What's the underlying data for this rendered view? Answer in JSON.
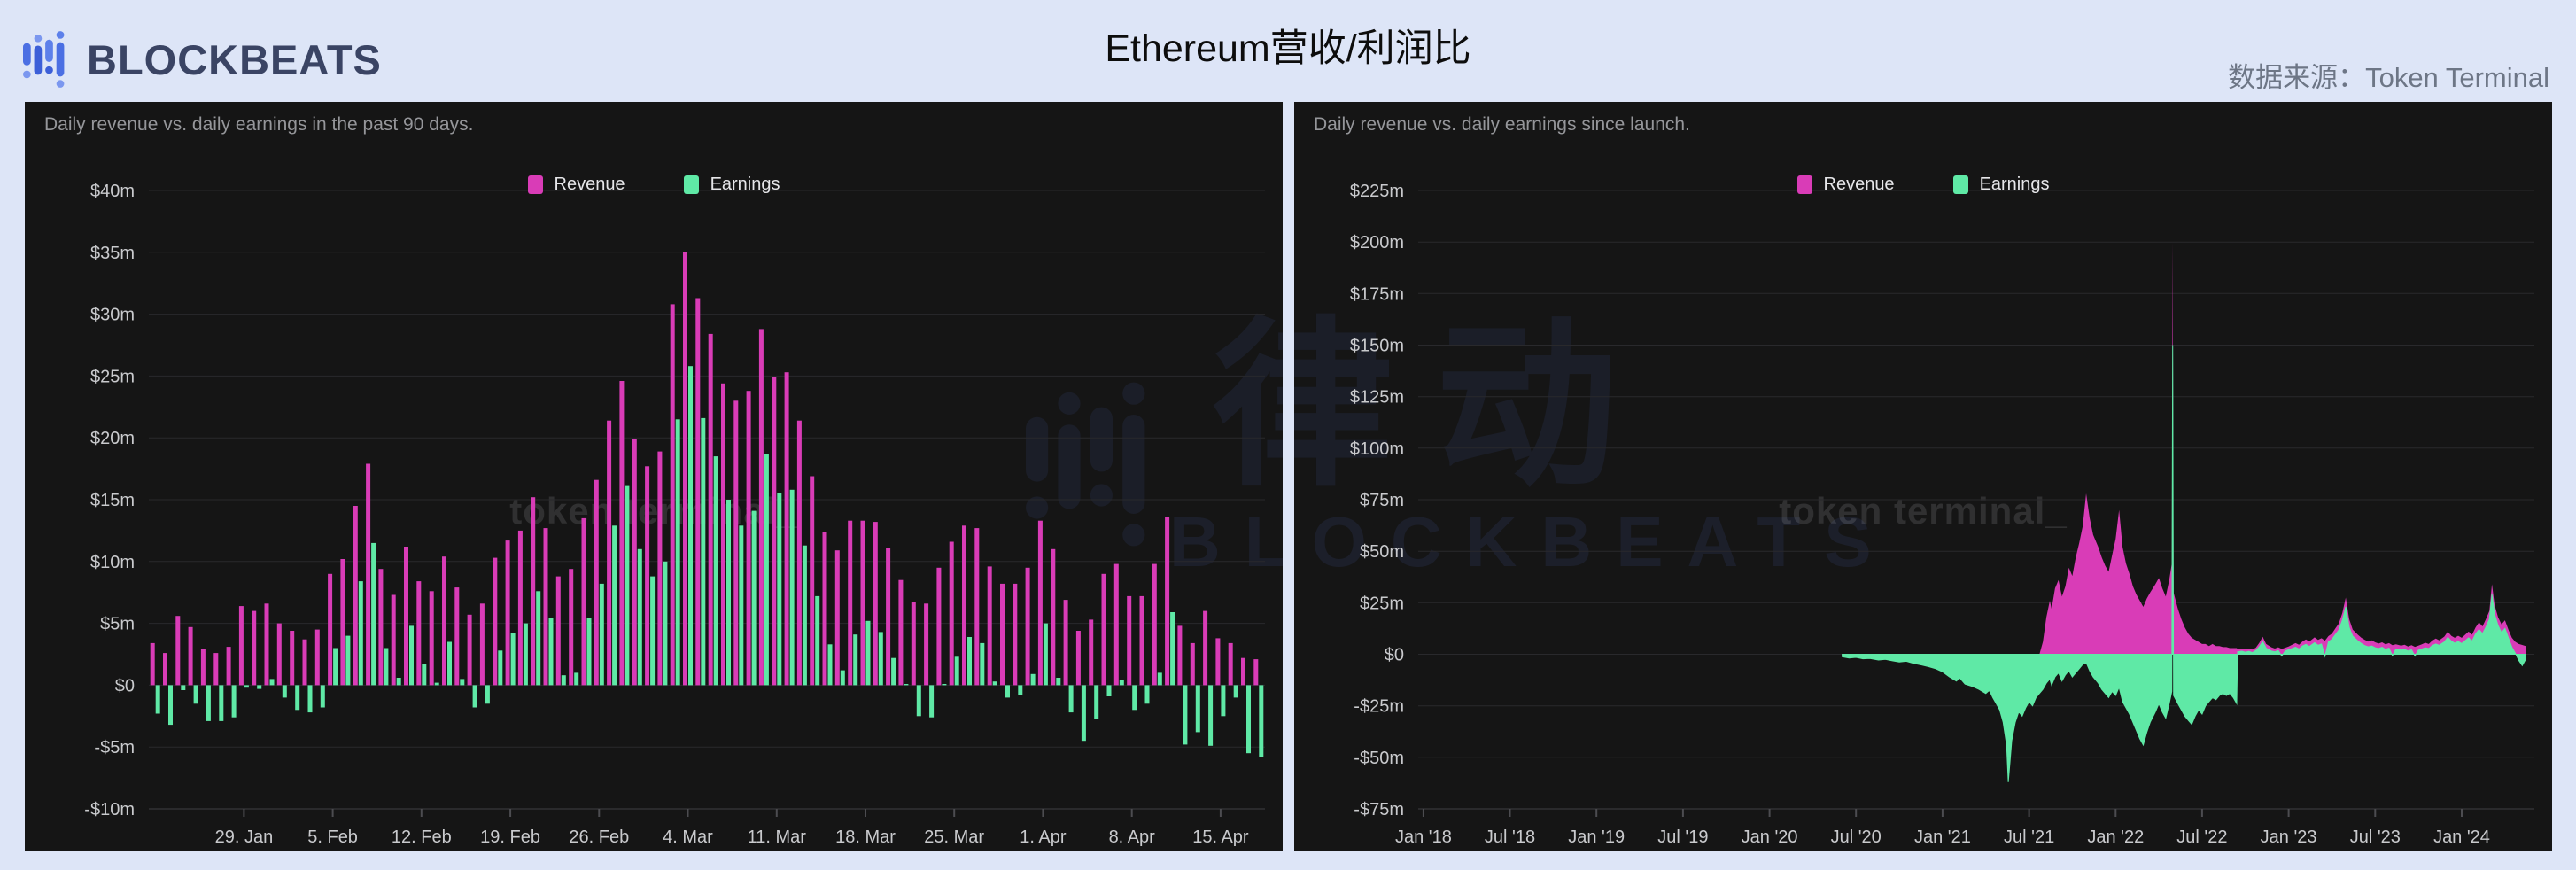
{
  "header": {
    "logo_text": "BLOCKBEATS",
    "title": "Ethereum营收/利润比",
    "source_label": "数据来源：Token Terminal"
  },
  "watermarks": {
    "token_terminal": "token terminal_",
    "blockbeats_cn": "律动",
    "blockbeats_en": "BLOCKBEATS"
  },
  "colors": {
    "revenue": "#d93cb7",
    "earnings": "#5fe9a6",
    "header_background": "#dde5f7",
    "panel_background": "#151515",
    "logo_blue": "#4b6fe3",
    "logo_text": "#3a4464",
    "grid_line": "#29292c",
    "axis_line": "#3e3e42",
    "axis_label": "#c9cacd",
    "subtitle_text": "#95969a",
    "source_text": "#6d7686"
  },
  "chart_data": [
    {
      "type": "bar",
      "subtitle": "Daily revenue vs. daily earnings in the past 90 days.",
      "unit": "$m",
      "ylim": [
        -10,
        40
      ],
      "y_tick_labels": [
        "$40m",
        "$35m",
        "$30m",
        "$25m",
        "$20m",
        "$15m",
        "$10m",
        "$5m",
        "$0",
        "-$5m",
        "-$10m"
      ],
      "y_tick_values": [
        40,
        35,
        30,
        25,
        20,
        15,
        10,
        5,
        0,
        -5,
        -10
      ],
      "x_tick_labels": [
        "29. Jan",
        "5. Feb",
        "12. Feb",
        "19. Feb",
        "26. Feb",
        "4. Mar",
        "11. Mar",
        "18. Mar",
        "25. Mar",
        "1. Apr",
        "8. Apr",
        "15. Apr"
      ],
      "x_tick_indices": [
        7,
        14,
        21,
        28,
        35,
        42,
        49,
        56,
        63,
        70,
        77,
        84
      ],
      "legend_position": "top-center",
      "grid": true,
      "series": [
        {
          "name": "Revenue",
          "color": "#d93cb7",
          "values": [
            3.4,
            2.6,
            5.6,
            4.7,
            2.9,
            2.6,
            3.1,
            6.4,
            6.0,
            6.6,
            5.0,
            4.4,
            3.7,
            4.5,
            9.0,
            10.2,
            14.5,
            17.9,
            9.4,
            7.3,
            11.2,
            8.4,
            7.6,
            10.4,
            7.9,
            5.7,
            6.6,
            10.3,
            11.7,
            12.5,
            15.2,
            12.7,
            8.8,
            9.4,
            13.5,
            16.6,
            21.4,
            24.6,
            19.9,
            17.7,
            18.9,
            30.8,
            35.0,
            31.3,
            28.4,
            24.4,
            23.0,
            23.8,
            28.8,
            24.9,
            25.3,
            21.4,
            16.9,
            12.4,
            10.9,
            13.3,
            13.3,
            13.2,
            11.1,
            8.5,
            6.7,
            6.6,
            9.5,
            11.6,
            12.9,
            12.7,
            9.6,
            8.2,
            8.2,
            9.5,
            13.3,
            11.0,
            6.9,
            4.4,
            5.3,
            9.0,
            9.8,
            7.2,
            7.2,
            9.8,
            13.6,
            4.8,
            3.4,
            6.0,
            3.8,
            3.4,
            2.2,
            2.1
          ]
        },
        {
          "name": "Earnings",
          "color": "#5fe9a6",
          "values": [
            -2.3,
            -3.2,
            -0.4,
            -1.5,
            -2.9,
            -2.9,
            -2.6,
            -0.2,
            -0.3,
            0.5,
            -1.0,
            -2.0,
            -2.2,
            -1.8,
            3.0,
            4.0,
            8.4,
            11.5,
            3.0,
            0.6,
            4.8,
            1.7,
            0.2,
            3.5,
            0.5,
            -1.8,
            -1.5,
            2.8,
            4.2,
            5.0,
            7.6,
            5.4,
            0.8,
            1.0,
            5.4,
            8.2,
            12.9,
            16.1,
            11.0,
            8.8,
            10.0,
            21.5,
            25.8,
            21.6,
            18.5,
            15.0,
            12.9,
            14.1,
            18.7,
            15.5,
            15.8,
            11.3,
            7.2,
            3.3,
            1.2,
            4.1,
            5.2,
            4.3,
            2.2,
            0.1,
            -2.5,
            -2.6,
            0.1,
            2.3,
            3.9,
            3.4,
            0.3,
            -1.0,
            -0.8,
            0.9,
            5.0,
            0.6,
            -2.2,
            -4.5,
            -2.7,
            -0.9,
            0.4,
            -2.0,
            -1.5,
            1.0,
            5.9,
            -4.8,
            -3.8,
            -4.9,
            -2.5,
            -1.0,
            -5.5,
            -5.8
          ]
        }
      ]
    },
    {
      "type": "area",
      "subtitle": "Daily revenue vs. daily earnings since launch.",
      "unit": "$m",
      "ylim": [
        -75,
        225
      ],
      "xlim": [
        2017.97,
        2024.42
      ],
      "y_tick_labels": [
        "$225m",
        "$200m",
        "$175m",
        "$150m",
        "$125m",
        "$100m",
        "$75m",
        "$50m",
        "$25m",
        "$0",
        "-$25m",
        "-$50m",
        "-$75m"
      ],
      "y_tick_values": [
        225,
        200,
        175,
        150,
        125,
        100,
        75,
        50,
        25,
        0,
        -25,
        -50,
        -75
      ],
      "x_tick_labels": [
        "Jan '18",
        "Jul '18",
        "Jan '19",
        "Jul '19",
        "Jan '20",
        "Jul '20",
        "Jan '21",
        "Jul '21",
        "Jan '22",
        "Jul '22",
        "Jan '23",
        "Jul '23",
        "Jan '24"
      ],
      "x_tick_values": [
        2018.0,
        2018.5,
        2019.0,
        2019.5,
        2020.0,
        2020.5,
        2021.0,
        2021.5,
        2022.0,
        2022.5,
        2023.0,
        2023.5,
        2024.0
      ],
      "legend_position": "top-center",
      "grid": true,
      "x": [
        2020.42,
        2020.46,
        2020.5,
        2020.54,
        2020.58,
        2020.63,
        2020.67,
        2020.71,
        2020.75,
        2020.79,
        2020.83,
        2020.88,
        2020.92,
        2020.96,
        2021.0,
        2021.04,
        2021.08,
        2021.1,
        2021.13,
        2021.17,
        2021.21,
        2021.25,
        2021.27,
        2021.29,
        2021.31,
        2021.33,
        2021.35,
        2021.37,
        2021.38,
        2021.39,
        2021.4,
        2021.42,
        2021.44,
        2021.46,
        2021.48,
        2021.5,
        2021.52,
        2021.54,
        2021.56,
        2021.58,
        2021.6,
        2021.62,
        2021.63,
        2021.65,
        2021.67,
        2021.69,
        2021.71,
        2021.73,
        2021.75,
        2021.77,
        2021.79,
        2021.81,
        2021.83,
        2021.85,
        2021.87,
        2021.9,
        2021.92,
        2021.94,
        2021.96,
        2021.98,
        2022.0,
        2022.02,
        2022.04,
        2022.06,
        2022.08,
        2022.1,
        2022.12,
        2022.14,
        2022.16,
        2022.18,
        2022.2,
        2022.23,
        2022.25,
        2022.27,
        2022.29,
        2022.31,
        2022.325,
        2022.33,
        2022.335,
        2022.36,
        2022.38,
        2022.4,
        2022.42,
        2022.44,
        2022.46,
        2022.48,
        2022.5,
        2022.52,
        2022.54,
        2022.56,
        2022.58,
        2022.6,
        2022.62,
        2022.64,
        2022.66,
        2022.68,
        2022.7,
        2022.705,
        2022.73,
        2022.75,
        2022.77,
        2022.79,
        2022.81,
        2022.83,
        2022.85,
        2022.87,
        2022.9,
        2022.92,
        2022.94,
        2022.96,
        2022.98,
        2023.0,
        2023.02,
        2023.04,
        2023.06,
        2023.08,
        2023.1,
        2023.12,
        2023.15,
        2023.17,
        2023.19,
        2023.21,
        2023.23,
        2023.25,
        2023.27,
        2023.29,
        2023.31,
        2023.33,
        2023.35,
        2023.37,
        2023.4,
        2023.42,
        2023.44,
        2023.46,
        2023.48,
        2023.5,
        2023.52,
        2023.54,
        2023.56,
        2023.58,
        2023.6,
        2023.62,
        2023.65,
        2023.67,
        2023.69,
        2023.71,
        2023.73,
        2023.75,
        2023.77,
        2023.79,
        2023.81,
        2023.83,
        2023.85,
        2023.87,
        2023.9,
        2023.92,
        2023.94,
        2023.96,
        2023.98,
        2024.0,
        2024.02,
        2024.04,
        2024.06,
        2024.08,
        2024.1,
        2024.12,
        2024.14,
        2024.16,
        2024.175,
        2024.19,
        2024.21,
        2024.23,
        2024.25,
        2024.27,
        2024.29,
        2024.31,
        2024.33,
        2024.35,
        2024.37
      ],
      "series": [
        {
          "name": "Revenue",
          "color": "#d93cb7",
          "values": [
            0,
            0,
            0,
            0,
            0,
            0,
            0,
            0,
            0,
            0,
            0,
            0,
            0,
            0,
            0,
            0,
            0,
            0,
            0,
            0,
            0,
            0,
            0,
            0,
            0,
            0,
            0,
            0,
            0,
            0,
            0,
            0,
            0,
            0,
            0,
            0,
            0,
            0,
            0,
            6,
            18,
            26,
            22,
            32,
            36,
            28,
            33,
            42,
            38,
            47,
            54,
            62,
            78,
            66,
            58,
            52,
            47,
            43,
            40,
            48,
            56,
            70,
            52,
            44,
            39,
            33,
            29,
            26,
            23,
            27,
            30,
            34,
            37,
            32,
            28,
            36,
            44,
            200,
            30,
            22,
            17,
            13,
            10,
            8,
            7,
            6,
            5,
            5,
            4,
            5,
            4,
            4,
            3.5,
            3.5,
            3,
            3,
            3,
            2.5,
            2.8,
            2.4,
            2.8,
            2.3,
            3.2,
            5.5,
            8.5,
            5.0,
            3.4,
            2.8,
            3.4,
            2.6,
            3.2,
            3.8,
            4.6,
            5.4,
            4.6,
            6.2,
            7.2,
            6.2,
            8.2,
            7.0,
            7.8,
            6.6,
            8.8,
            10.0,
            12.5,
            15.0,
            20.0,
            27.5,
            17.0,
            12.0,
            9.5,
            8.0,
            7.0,
            6.2,
            6.8,
            5.8,
            5.2,
            5.8,
            4.8,
            5.4,
            4.4,
            4.8,
            4.2,
            4.6,
            3.8,
            4.4,
            3.6,
            4.2,
            4.8,
            5.6,
            5.0,
            6.6,
            7.6,
            6.8,
            8.6,
            11.0,
            9.0,
            8.0,
            9.0,
            8.0,
            9.5,
            11.0,
            9.5,
            13.0,
            15.5,
            13.5,
            17.0,
            21.0,
            34.0,
            24.0,
            18.0,
            14.5,
            16.5,
            12.0,
            8.0,
            6.0,
            5.0,
            4.5,
            4.0
          ]
        },
        {
          "name": "Earnings",
          "color": "#5fe9a6",
          "values": [
            -1.2,
            -1.8,
            -1.5,
            -2.2,
            -2.0,
            -2.8,
            -2.5,
            -3.2,
            -3.8,
            -3.4,
            -4.4,
            -5.2,
            -6.0,
            -7.0,
            -8.5,
            -11,
            -13,
            -11.5,
            -14.5,
            -15.5,
            -17,
            -19,
            -17.5,
            -21,
            -24,
            -27,
            -33,
            -44,
            -62,
            -52,
            -42,
            -33,
            -28,
            -30,
            -26,
            -23,
            -25,
            -21,
            -19,
            -17,
            -14,
            -12,
            -15,
            -11,
            -9,
            -13,
            -10,
            -8,
            -11,
            -9,
            -7,
            -5,
            -4,
            -8,
            -11,
            -14,
            -17,
            -19,
            -21,
            -18,
            -20,
            -16,
            -23,
            -26,
            -29,
            -33,
            -37,
            -41,
            -44,
            -38,
            -33,
            -28,
            -24,
            -28,
            -31,
            -24,
            -18,
            150,
            -20,
            -24,
            -27,
            -30,
            -32,
            -34,
            -30,
            -27,
            -29,
            -25,
            -23,
            -21,
            -22,
            -20,
            -19,
            -20,
            -19,
            -21,
            -24,
            1.2,
            1.5,
            1.0,
            1.4,
            0.8,
            1.8,
            3.6,
            6.2,
            3.0,
            1.6,
            1.2,
            1.8,
            -0.8,
            1.6,
            2.2,
            2.8,
            3.4,
            2.6,
            4.0,
            4.8,
            3.8,
            5.6,
            4.4,
            5.0,
            -0.9,
            6.0,
            7.2,
            9.5,
            11.8,
            16.5,
            23.0,
            13.0,
            8.8,
            6.5,
            5.2,
            4.2,
            3.6,
            4.0,
            3.2,
            2.8,
            3.4,
            2.4,
            3.0,
            -0.7,
            2.6,
            2.0,
            2.4,
            1.6,
            2.2,
            -0.8,
            2.0,
            2.6,
            3.2,
            2.8,
            4.2,
            5.0,
            4.4,
            6.0,
            8.2,
            6.4,
            5.4,
            6.2,
            5.2,
            6.6,
            8.0,
            6.4,
            9.8,
            12.0,
            10.0,
            13.2,
            17.0,
            29.0,
            19.5,
            14.0,
            10.5,
            12.5,
            8.0,
            3.5,
            0.5,
            -3.0,
            -5.5,
            -2.5
          ]
        }
      ]
    }
  ]
}
